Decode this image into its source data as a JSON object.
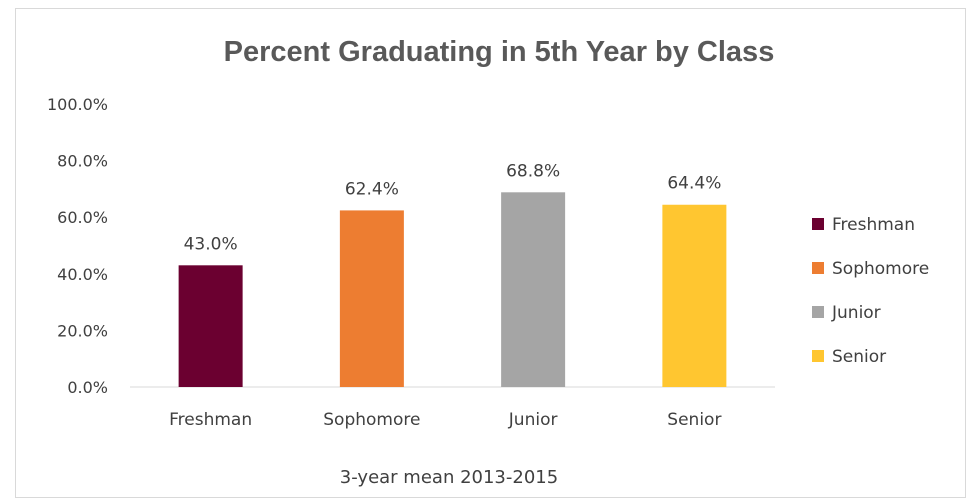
{
  "chart_data": {
    "type": "bar",
    "title": "Percent Graduating in 5th Year by Class",
    "xlabel": "3-year mean 2013-2015",
    "ylabel": "",
    "ylim": [
      0,
      100
    ],
    "yticks": [
      "0.0%",
      "20.0%",
      "40.0%",
      "60.0%",
      "80.0%",
      "100.0%"
    ],
    "categories": [
      "Freshman",
      "Sophomore",
      "Junior",
      "Senior"
    ],
    "values": [
      43.0,
      62.4,
      68.8,
      64.4
    ],
    "data_labels": [
      "43.0%",
      "62.4%",
      "68.8%",
      "64.4%"
    ],
    "colors": [
      "#6b0030",
      "#ed7d31",
      "#a5a5a5",
      "#ffc630"
    ],
    "legend": {
      "position": "right",
      "entries": [
        "Freshman",
        "Sophomore",
        "Junior",
        "Senior"
      ]
    },
    "grid": false
  }
}
